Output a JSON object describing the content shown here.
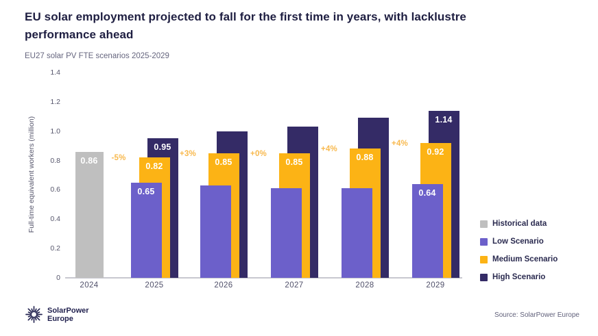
{
  "header": {
    "title": "EU solar employment projected to fall for the first time in years, with lacklustre performance ahead",
    "subtitle": "EU27 solar PV FTE scenarios 2025-2029"
  },
  "chart_data": {
    "type": "bar",
    "title": "EU solar employment projected to fall for the first time in years, with lacklustre performance ahead",
    "subtitle": "EU27 solar PV FTE scenarios 2025-2029",
    "categories": [
      "2024",
      "2025",
      "2026",
      "2027",
      "2028",
      "2029"
    ],
    "series": [
      {
        "name": "Historical data",
        "color": "#bfbfbf",
        "values": [
          0.86,
          null,
          null,
          null,
          null,
          null
        ],
        "labels": [
          "0.86",
          null,
          null,
          null,
          null,
          null
        ]
      },
      {
        "name": "Low Scenario",
        "color": "#6c60ca",
        "values": [
          null,
          0.65,
          0.63,
          0.61,
          0.61,
          0.64
        ],
        "labels": [
          null,
          "0.65",
          null,
          null,
          null,
          "0.64"
        ]
      },
      {
        "name": "Medium Scenario",
        "color": "#fcb315",
        "values": [
          null,
          0.82,
          0.85,
          0.85,
          0.88,
          0.92
        ],
        "labels": [
          null,
          "0.82",
          "0.85",
          "0.85",
          "0.88",
          "0.92"
        ]
      },
      {
        "name": "High Scenario",
        "color": "#342b66",
        "values": [
          null,
          0.95,
          1.0,
          1.03,
          1.09,
          1.14
        ],
        "labels": [
          null,
          "0.95",
          null,
          null,
          null,
          "1.14"
        ]
      }
    ],
    "growth_annotations": [
      {
        "category": "2025",
        "label": "-5%"
      },
      {
        "category": "2026",
        "label": "+3%"
      },
      {
        "category": "2027",
        "label": "+0%"
      },
      {
        "category": "2028",
        "label": "+4%"
      },
      {
        "category": "2029",
        "label": "+4%"
      }
    ],
    "annotation_color": "#f8b94e",
    "xlabel": "",
    "ylabel": "Full-time equivalent workers (million)",
    "ylim": [
      0,
      1.4
    ],
    "yticks": [
      "0",
      "0.2",
      "0.4",
      "0.6",
      "0.8",
      "1.0",
      "1.2",
      "1.4"
    ],
    "grid": false,
    "legend_position": "bottom-right"
  },
  "legend": {
    "items": [
      {
        "label": "Historical data",
        "color": "#bfbfbf"
      },
      {
        "label": "Low Scenario",
        "color": "#6c60ca"
      },
      {
        "label": "Medium Scenario",
        "color": "#fcb315"
      },
      {
        "label": "High Scenario",
        "color": "#342b66"
      }
    ]
  },
  "footer": {
    "logo_line1": "SolarPower",
    "logo_line2": "Europe",
    "source": "Source: SolarPower Europe"
  }
}
